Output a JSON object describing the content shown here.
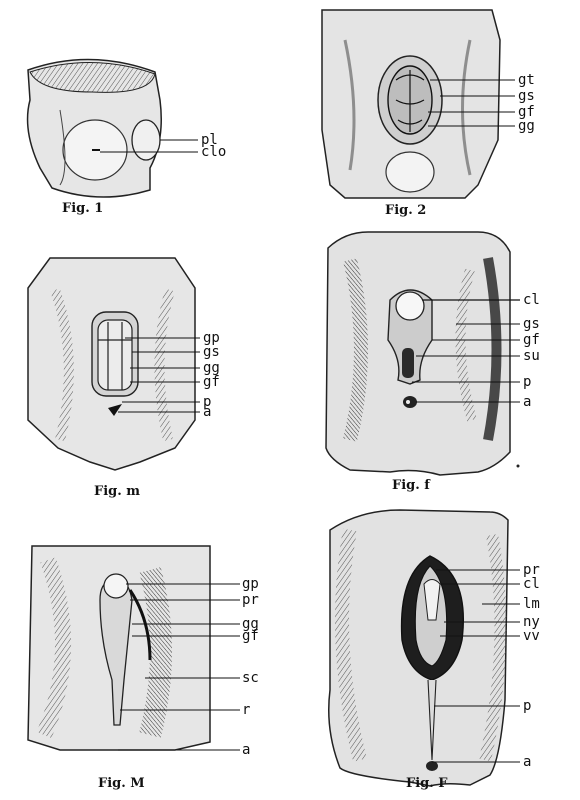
{
  "figures": {
    "fig1": {
      "caption": "Fig. 1",
      "labels": [
        "pl",
        "clo"
      ]
    },
    "fig2": {
      "caption": "Fig. 2",
      "labels": [
        "gt",
        "gs",
        "gf",
        "gg"
      ]
    },
    "figm": {
      "caption": "Fig. m",
      "labels": [
        "gp",
        "gs",
        "gg",
        "gf",
        "p",
        "a"
      ]
    },
    "figf": {
      "caption": "Fig. f",
      "labels": [
        "cl",
        "gs",
        "gf",
        "su",
        "p",
        "a"
      ]
    },
    "figM": {
      "caption": "Fig. M",
      "labels": [
        "gp",
        "pr",
        "gg",
        "gf",
        "sc",
        "r",
        "a"
      ]
    },
    "figF": {
      "caption": "Fig. F",
      "labels": [
        "pr",
        "cl",
        "lm",
        "ny",
        "vv",
        "p",
        "a"
      ]
    }
  }
}
